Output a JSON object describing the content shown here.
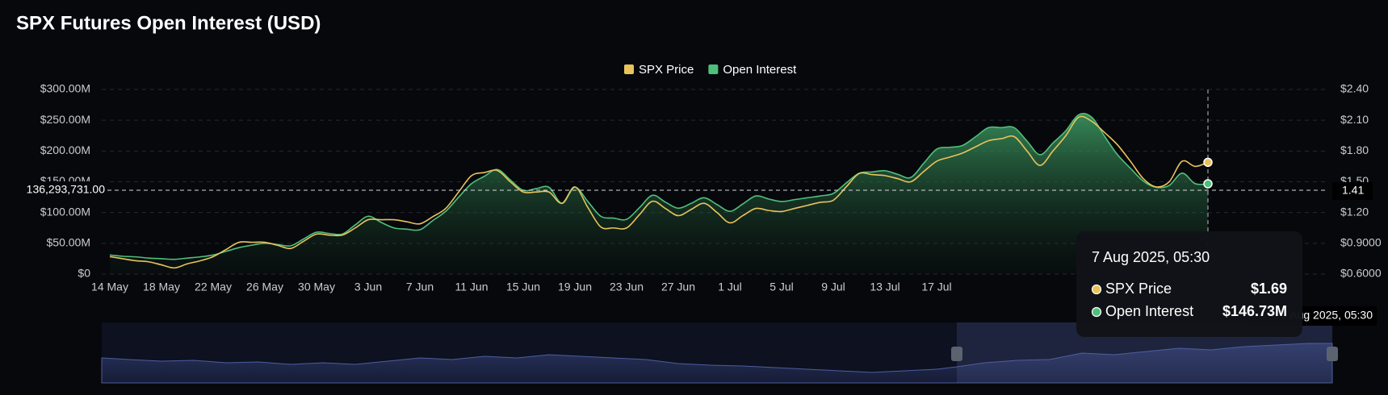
{
  "chart_data": {
    "type": "line",
    "title": "SPX Futures Open Interest (USD)",
    "categories": [
      "14 May",
      null,
      null,
      null,
      "18 May",
      null,
      null,
      null,
      "22 May",
      null,
      null,
      null,
      "26 May",
      null,
      null,
      null,
      "30 May",
      null,
      null,
      null,
      "3 Jun",
      null,
      null,
      null,
      "7 Jun",
      null,
      null,
      null,
      "11 Jun",
      null,
      null,
      null,
      "15 Jun",
      null,
      null,
      null,
      "19 Jun",
      null,
      null,
      null,
      "23 Jun",
      null,
      null,
      null,
      "27 Jun",
      null,
      null,
      null,
      "1 Jul",
      null,
      null,
      null,
      "5 Jul",
      null,
      null,
      null,
      "9 Jul",
      null,
      null,
      null,
      "13 Jul",
      null,
      null,
      null,
      "17 Jul",
      null,
      null,
      null,
      null,
      null,
      null,
      null,
      null,
      null,
      null,
      null,
      null,
      null,
      null,
      null,
      null,
      null,
      null,
      null,
      null,
      null
    ],
    "series": [
      {
        "name": "SPX Price",
        "color": "#e8c35a",
        "axis": "y2",
        "values": [
          0.77,
          0.75,
          0.73,
          0.72,
          0.69,
          0.66,
          0.7,
          0.73,
          0.77,
          0.84,
          0.91,
          0.91,
          0.91,
          0.88,
          0.85,
          0.92,
          0.99,
          0.98,
          0.98,
          1.05,
          1.13,
          1.13,
          1.13,
          1.11,
          1.09,
          1.16,
          1.24,
          1.4,
          1.56,
          1.59,
          1.61,
          1.5,
          1.4,
          1.4,
          1.4,
          1.29,
          1.45,
          1.25,
          1.06,
          1.05,
          1.05,
          1.18,
          1.31,
          1.24,
          1.17,
          1.23,
          1.29,
          1.2,
          1.1,
          1.17,
          1.24,
          1.22,
          1.21,
          1.24,
          1.27,
          1.3,
          1.32,
          1.45,
          1.58,
          1.57,
          1.56,
          1.53,
          1.5,
          1.6,
          1.7,
          1.74,
          1.78,
          1.84,
          1.9,
          1.92,
          1.94,
          1.8,
          1.66,
          1.8,
          1.95,
          2.13,
          2.09,
          1.98,
          1.86,
          1.7,
          1.53,
          1.45,
          1.5,
          1.7,
          1.65,
          1.69
        ]
      },
      {
        "name": "Open Interest",
        "color": "#4fbf7c",
        "axis": "y",
        "values": [
          31000000,
          29000000,
          28000000,
          26000000,
          25000000,
          24000000,
          26000000,
          28000000,
          31000000,
          37000000,
          43000000,
          47000000,
          50000000,
          48000000,
          46000000,
          57000000,
          68000000,
          66000000,
          65000000,
          80000000,
          94000000,
          84000000,
          75000000,
          73000000,
          72000000,
          87000000,
          102000000,
          125000000,
          147000000,
          159000000,
          170000000,
          153000000,
          136000000,
          139000000,
          141000000,
          115000000,
          141000000,
          118000000,
          94000000,
          91000000,
          89000000,
          108000000,
          128000000,
          117000000,
          107000000,
          115000000,
          124000000,
          113000000,
          102000000,
          114000000,
          127000000,
          122000000,
          118000000,
          121000000,
          124000000,
          127000000,
          131000000,
          148000000,
          164000000,
          166000000,
          168000000,
          162000000,
          157000000,
          180000000,
          203000000,
          206000000,
          209000000,
          223000000,
          238000000,
          238000000,
          238000000,
          216000000,
          194000000,
          213000000,
          233000000,
          259000000,
          255000000,
          224000000,
          194000000,
          172000000,
          151000000,
          141000000,
          144000000,
          164000000,
          147000000,
          146730000
        ]
      }
    ],
    "ylim": [
      0,
      300000000
    ],
    "yticks": [
      {
        "value": 0,
        "label": "$0"
      },
      {
        "value": 50000000,
        "label": "$50.00M"
      },
      {
        "value": 100000000,
        "label": "$100.00M"
      },
      {
        "value": 150000000,
        "label": "$150.00M"
      },
      {
        "value": 200000000,
        "label": "$200.00M"
      },
      {
        "value": 250000000,
        "label": "$250.00M"
      },
      {
        "value": 300000000,
        "label": "$300.00M"
      }
    ],
    "y2lim": [
      0.6,
      2.4
    ],
    "y2ticks": [
      {
        "value": 0.6,
        "label": "$0.6000"
      },
      {
        "value": 0.9,
        "label": "$0.9000"
      },
      {
        "value": 1.2,
        "label": "$1.20"
      },
      {
        "value": 1.5,
        "label": "$1.50"
      },
      {
        "value": 1.8,
        "label": "$1.80"
      },
      {
        "value": 2.1,
        "label": "$2.10"
      },
      {
        "value": 2.4,
        "label": "$2.40"
      }
    ],
    "grid": true,
    "legend": "top",
    "crosshair": {
      "y_value": 136293731,
      "y_label": "136,293,731.00",
      "y2_value": 1.41
    },
    "tooltip": {
      "date": "7 Aug 2025, 05:30",
      "value_labels": [
        "$1.69",
        "$146.73M"
      ]
    }
  }
}
